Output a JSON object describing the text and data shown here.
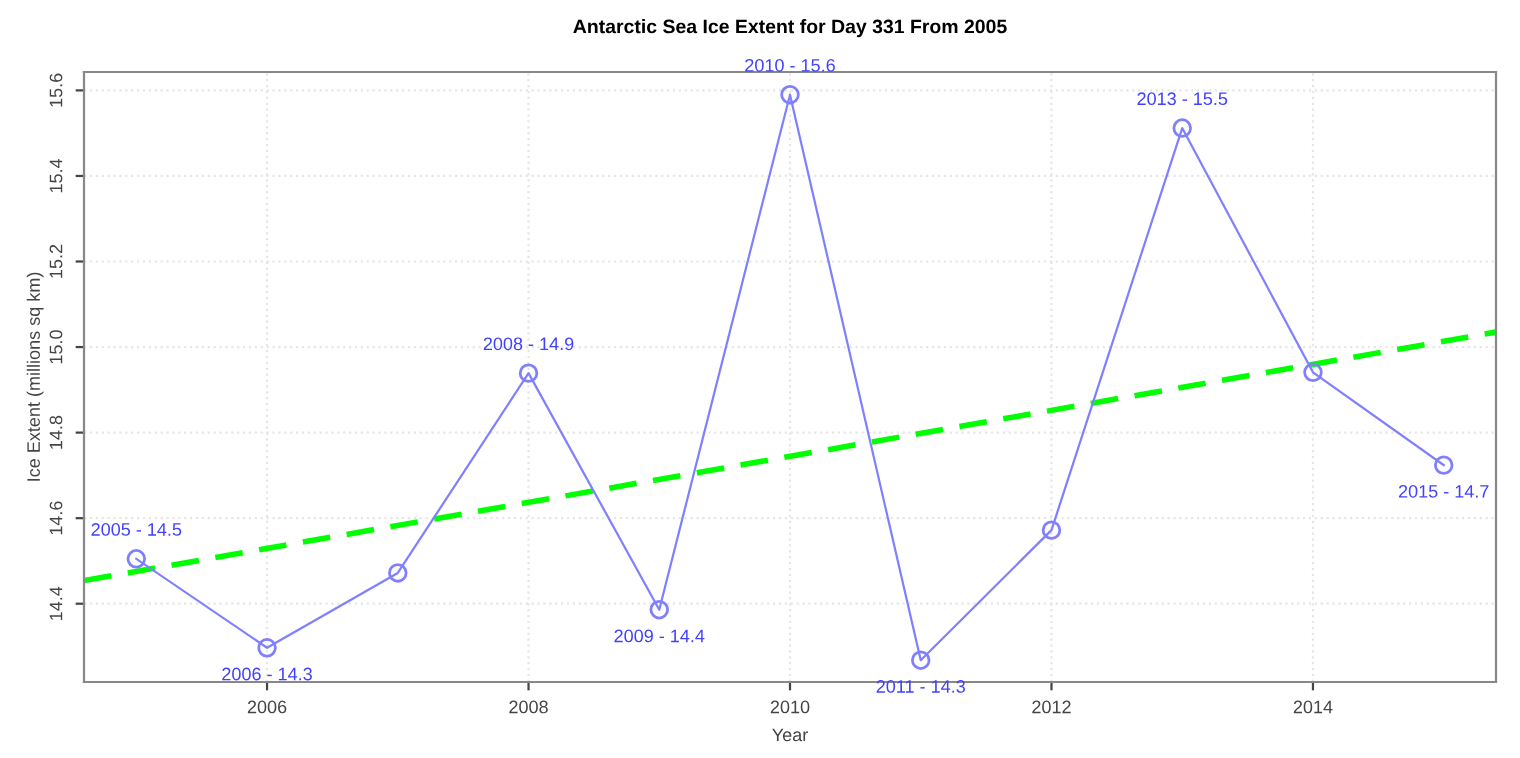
{
  "chart_data": {
    "type": "line",
    "title": "Antarctic Sea Ice Extent for Day 331 From 2005",
    "xlabel": "Year",
    "ylabel": "Ice Extent (millions sq km)",
    "xlim": [
      2004.6,
      2015.4
    ],
    "ylim": [
      14.217,
      15.643
    ],
    "xticks": [
      2006,
      2008,
      2010,
      2012,
      2014
    ],
    "yticks": [
      14.4,
      14.6,
      14.8,
      {
        "value": 15,
        "label": "15.0"
      },
      15.2,
      15.4,
      15.6
    ],
    "grid": true,
    "x": [
      2005,
      2006,
      2007,
      2008,
      2009,
      2010,
      2011,
      2012,
      2013,
      2014,
      2015
    ],
    "series": [
      {
        "type": "line",
        "color": "#8080ff",
        "marker": "circle",
        "line_style": "solid",
        "values": [
          14.505,
          14.297,
          14.472,
          14.939,
          14.386,
          15.59,
          14.268,
          14.572,
          15.512,
          14.941,
          14.724
        ]
      },
      {
        "type": "line",
        "color": "#00ff00",
        "marker": "none",
        "line_style": "dashed",
        "x": [
          2004.6,
          2015.4
        ],
        "values": [
          14.454,
          15.035
        ]
      }
    ],
    "annotations": [
      {
        "text": "2005 - 14.5",
        "x": 2005,
        "y": 14.505
      },
      {
        "text": "2006 - 14.3",
        "x": 2006,
        "y": 14.297
      },
      {
        "text": "2008 - 14.9",
        "x": 2008,
        "y": 14.939
      },
      {
        "text": "2009 - 14.4",
        "x": 2009,
        "y": 14.386
      },
      {
        "text": "2010 - 15.6",
        "x": 2010,
        "y": 15.59
      },
      {
        "text": "2011 - 14.3",
        "x": 2011,
        "y": 14.268
      },
      {
        "text": "2013 - 15.5",
        "x": 2013,
        "y": 15.512
      },
      {
        "text": "2015 - 14.7",
        "x": 2015,
        "y": 14.724
      }
    ]
  }
}
